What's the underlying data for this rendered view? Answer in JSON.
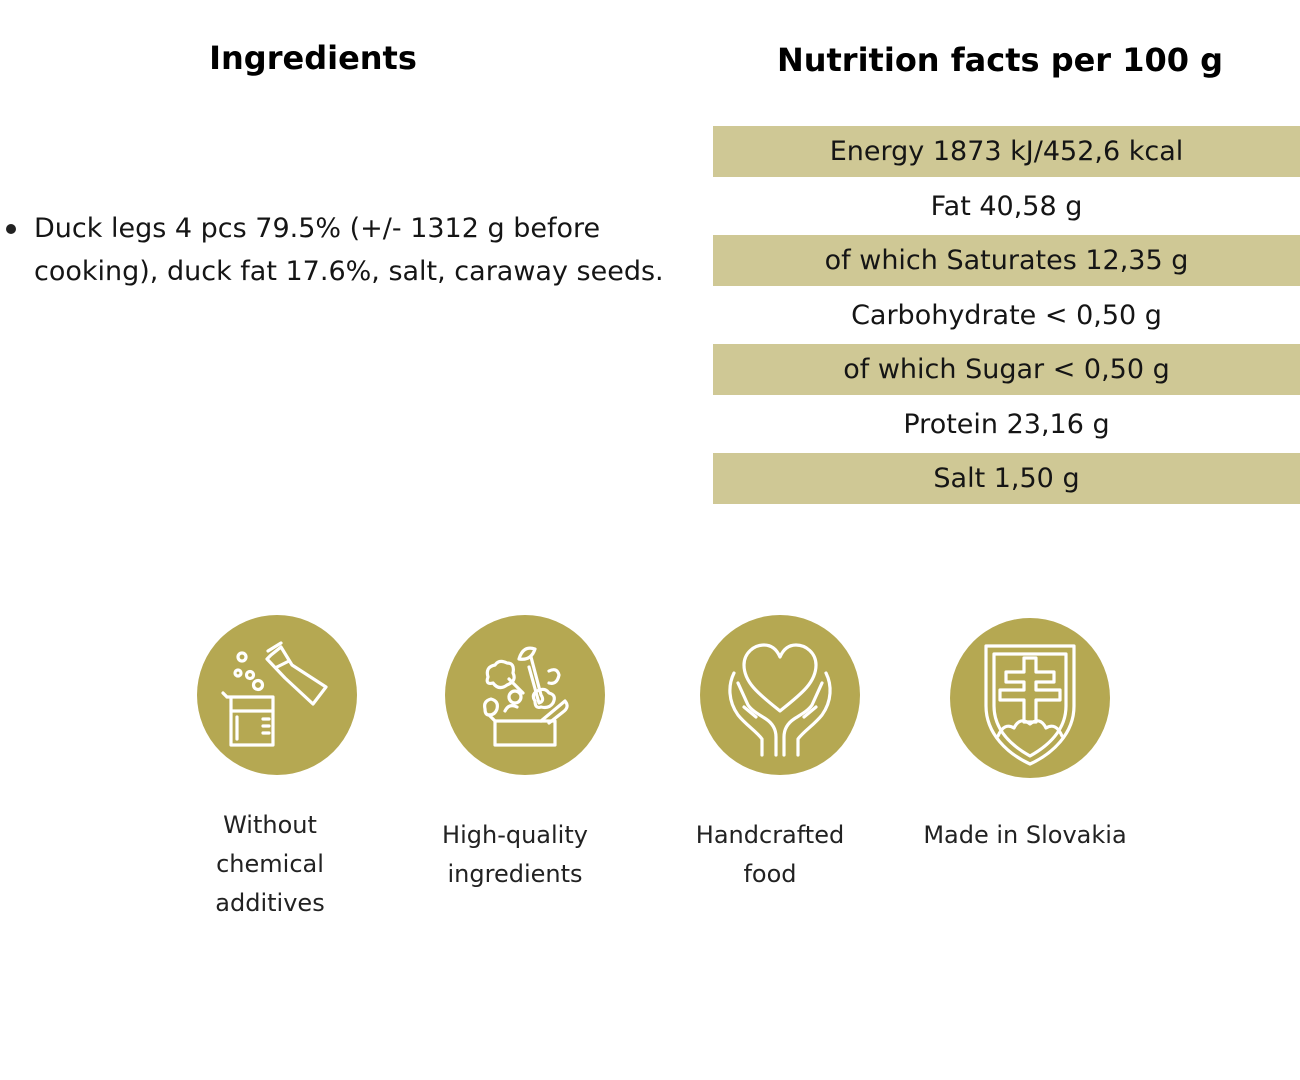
{
  "ingredients": {
    "title": "Ingredients",
    "items": [
      "Duck legs 4 pcs 79.5% (+/- 1312 g before cooking), duck fat 17.6%, salt, caraway seeds."
    ]
  },
  "nutrition": {
    "title": "Nutrition facts per 100 g",
    "rows": [
      "Energy 1873 kJ/452,6 kcal",
      "Fat 40,58 g",
      "of which Saturates 12,35 g",
      "Carbohydrate < 0,50 g",
      "of which Sugar < 0,50 g",
      "Protein 23,16 g",
      "Salt 1,50 g"
    ]
  },
  "badges": [
    {
      "icon": "chemistry-flask-icon",
      "label": "Without\nchemical\n additives"
    },
    {
      "icon": "vegetables-box-icon",
      "label": "High-quality\n ingredients"
    },
    {
      "icon": "hands-heart-icon",
      "label": "Handcrafted\nfood"
    },
    {
      "icon": "slovak-coat-of-arms-icon",
      "label": "Made in Slovakia"
    }
  ],
  "colors": {
    "accent": "#b5a852",
    "row_shade": "#cfc895",
    "icon_stroke": "#ffffff"
  }
}
